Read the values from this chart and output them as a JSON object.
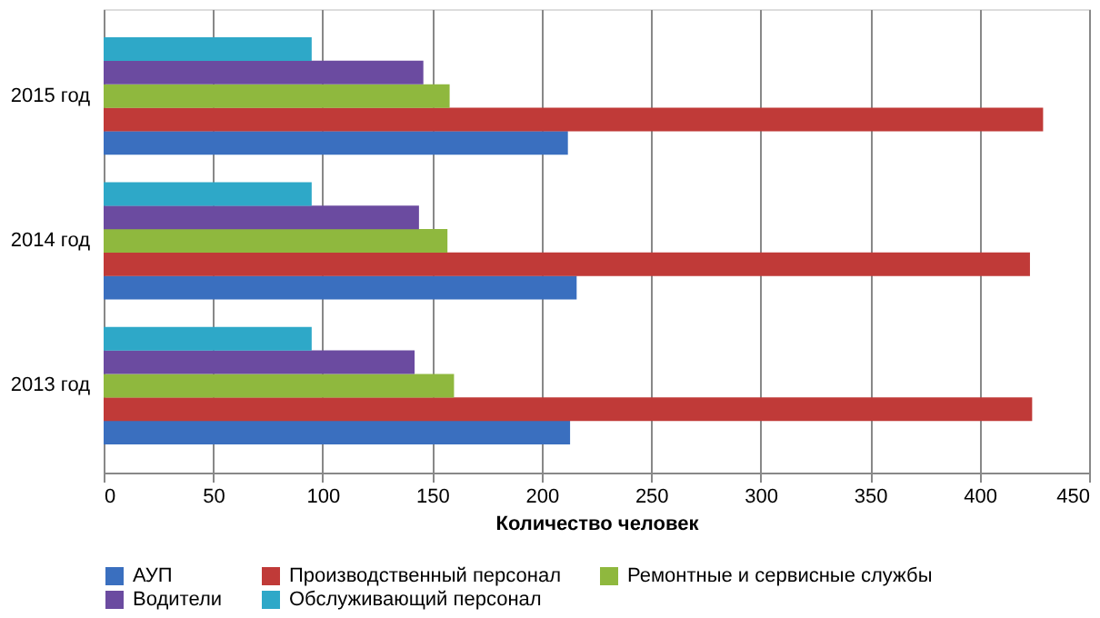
{
  "chart_data": {
    "type": "bar",
    "orientation": "horizontal",
    "xlabel": "Количество человек",
    "categories": [
      "2015 год",
      "2014 год",
      "2013 год"
    ],
    "series": [
      {
        "name": "АУП",
        "color": "#3a6fbf",
        "values": [
          212,
          216,
          213
        ]
      },
      {
        "name": "Производственный персонал",
        "color": "#c03a38",
        "values": [
          429,
          423,
          424
        ]
      },
      {
        "name": "Ремонтные и сервисные службы",
        "color": "#8fb83e",
        "values": [
          158,
          157,
          160
        ]
      },
      {
        "name": "Водители",
        "color": "#6b4ba0",
        "values": [
          146,
          144,
          142
        ]
      },
      {
        "name": "Обслуживающий персонал",
        "color": "#2ea8c8",
        "values": [
          95,
          95,
          95
        ]
      }
    ],
    "xlim": [
      0,
      450
    ],
    "xticks": [
      0,
      50,
      100,
      150,
      200,
      250,
      300,
      350,
      400,
      450
    ],
    "grid": "x",
    "legend": "bottom"
  }
}
